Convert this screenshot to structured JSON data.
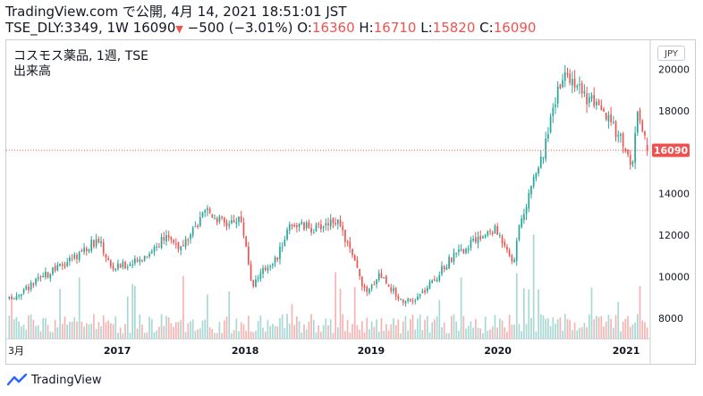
{
  "header": {
    "line1": "TradingView.com で公開, 4月 14, 2021 18:51:01 JST",
    "symbol_text": "TSE_DLY:3349, 1W 16090",
    "arrow": "▼",
    "change": "−500 (−3.01%)",
    "o_label": "O:",
    "o_value": "16360",
    "h_label": "H:",
    "h_value": "16710",
    "l_label": "L:",
    "l_value": "15820",
    "c_label": "C:",
    "c_value": "16090"
  },
  "legend": {
    "title": "コスモス薬品, 1週, TSE",
    "volume_label": "出来高"
  },
  "currency_button": "JPY",
  "footer": {
    "brand": "TradingView"
  },
  "colors": {
    "up": "#26a69a",
    "down": "#ef5350",
    "last_price": "#ef5350",
    "vol_up": "#a8d8d3",
    "vol_down": "#f5b3b1"
  },
  "chart_data": {
    "type": "candlestick",
    "interval": "1W",
    "y_ticks": [
      8000,
      10000,
      12000,
      14000,
      16000,
      18000,
      20000
    ],
    "y_tick_labels": [
      "8000",
      "10000",
      "12000",
      "14000",
      "16000",
      "18000",
      "20000"
    ],
    "ylim": [
      7000,
      21400
    ],
    "x_ticks": [
      {
        "label": "3月",
        "t": 0
      },
      {
        "label": "2017",
        "t": 0.1706
      },
      {
        "label": "2018",
        "t": 0.3703
      },
      {
        "label": "2019",
        "t": 0.5669
      },
      {
        "label": "2020",
        "t": 0.7648
      },
      {
        "label": "2021",
        "t": 0.9652
      }
    ],
    "last_price": 16090,
    "last_price_label": "16090",
    "key_points": [
      {
        "t": 0.0,
        "price": 8900
      },
      {
        "t": 0.08,
        "price": 10500
      },
      {
        "t": 0.14,
        "price": 11800
      },
      {
        "t": 0.16,
        "price": 10400
      },
      {
        "t": 0.2,
        "price": 10700
      },
      {
        "t": 0.25,
        "price": 12000
      },
      {
        "t": 0.27,
        "price": 11300
      },
      {
        "t": 0.31,
        "price": 13200
      },
      {
        "t": 0.34,
        "price": 12500
      },
      {
        "t": 0.36,
        "price": 12900
      },
      {
        "t": 0.37,
        "price": 11800
      },
      {
        "t": 0.38,
        "price": 9600
      },
      {
        "t": 0.41,
        "price": 10700
      },
      {
        "t": 0.42,
        "price": 10900
      },
      {
        "t": 0.44,
        "price": 12600
      },
      {
        "t": 0.48,
        "price": 12300
      },
      {
        "t": 0.51,
        "price": 12800
      },
      {
        "t": 0.53,
        "price": 11600
      },
      {
        "t": 0.56,
        "price": 9100
      },
      {
        "t": 0.58,
        "price": 10200
      },
      {
        "t": 0.61,
        "price": 9000
      },
      {
        "t": 0.63,
        "price": 8700
      },
      {
        "t": 0.66,
        "price": 9600
      },
      {
        "t": 0.69,
        "price": 10800
      },
      {
        "t": 0.73,
        "price": 11700
      },
      {
        "t": 0.76,
        "price": 12300
      },
      {
        "t": 0.78,
        "price": 11500
      },
      {
        "t": 0.79,
        "price": 10500
      },
      {
        "t": 0.8,
        "price": 12500
      },
      {
        "t": 0.82,
        "price": 14500
      },
      {
        "t": 0.84,
        "price": 16200
      },
      {
        "t": 0.86,
        "price": 19200
      },
      {
        "t": 0.88,
        "price": 19700
      },
      {
        "t": 0.9,
        "price": 18800
      },
      {
        "t": 0.92,
        "price": 18200
      },
      {
        "t": 0.94,
        "price": 17500
      },
      {
        "t": 0.96,
        "price": 16700
      },
      {
        "t": 0.975,
        "price": 15200
      },
      {
        "t": 0.985,
        "price": 17700
      },
      {
        "t": 1.0,
        "price": 16090
      }
    ]
  }
}
